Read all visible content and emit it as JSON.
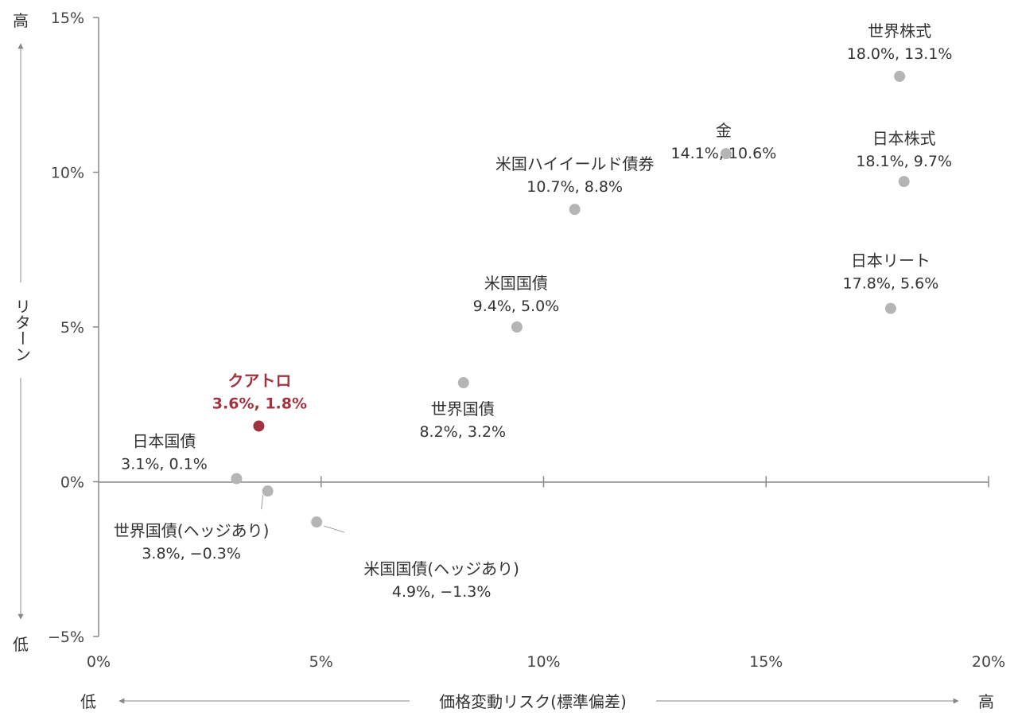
{
  "chart_data": {
    "type": "scatter",
    "title": "",
    "xlabel": "価格変動リスク(標準偏差)",
    "ylabel": "リターン",
    "x_low_label": "低",
    "x_high_label": "高",
    "y_low_label": "低",
    "y_high_label": "高",
    "xlim": [
      0,
      20
    ],
    "ylim": [
      -5,
      15
    ],
    "x_ticks": [
      "0%",
      "5%",
      "10%",
      "15%",
      "20%"
    ],
    "y_ticks": [
      "15%",
      "10%",
      "5%",
      "0%",
      "−5%"
    ],
    "grid": false,
    "colors": {
      "default": "#b5b5b5",
      "highlight": "#a3323f",
      "axis": "#888888"
    },
    "points": [
      {
        "name": "世界株式",
        "label": "18.0%, 13.1%",
        "x": 18.0,
        "y": 13.1
      },
      {
        "name": "金",
        "label": "14.1%, 10.6%",
        "x": 14.1,
        "y": 10.6
      },
      {
        "name": "日本株式",
        "label": "18.1%, 9.7%",
        "x": 18.1,
        "y": 9.7
      },
      {
        "name": "米国ハイイールド債券",
        "label": "10.7%, 8.8%",
        "x": 10.7,
        "y": 8.8
      },
      {
        "name": "日本リート",
        "label": "17.8%, 5.6%",
        "x": 17.8,
        "y": 5.6
      },
      {
        "name": "米国国債",
        "label": "9.4%, 5.0%",
        "x": 9.4,
        "y": 5.0
      },
      {
        "name": "世界国債",
        "label": "8.2%, 3.2%",
        "x": 8.2,
        "y": 3.2
      },
      {
        "name": "クアトロ",
        "label": "3.6%, 1.8%",
        "x": 3.6,
        "y": 1.8,
        "highlight": true
      },
      {
        "name": "日本国債",
        "label": "3.1%, 0.1%",
        "x": 3.1,
        "y": 0.1
      },
      {
        "name": "世界国債(ヘッジあり)",
        "label": "3.8%, −0.3%",
        "x": 3.8,
        "y": -0.3
      },
      {
        "name": "米国国債(ヘッジあり)",
        "label": "4.9%, −1.3%",
        "x": 4.9,
        "y": -1.3
      }
    ]
  }
}
